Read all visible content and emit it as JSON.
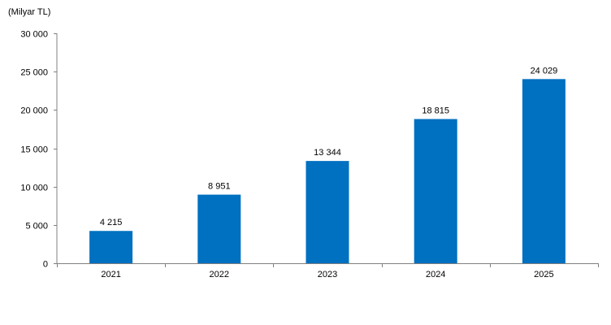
{
  "chart_data": {
    "type": "bar",
    "ylabel": "(Milyar TL)",
    "categories": [
      "2021",
      "2022",
      "2023",
      "2024",
      "2025"
    ],
    "values": [
      4215,
      8951,
      13344,
      18815,
      24029
    ],
    "value_labels": [
      "4 215",
      "8 951",
      "13 344",
      "18 815",
      "24 029"
    ],
    "ylim": [
      0,
      30000
    ],
    "yticks": [
      0,
      5000,
      10000,
      15000,
      20000,
      25000,
      30000
    ],
    "ytick_labels": [
      "0",
      "5 000",
      "10 000",
      "15 000",
      "20 000",
      "25 000",
      "30 000"
    ],
    "grid": false,
    "legend": "none",
    "bar_color": "#0070C0"
  }
}
